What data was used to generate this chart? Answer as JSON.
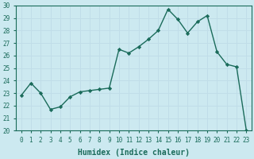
{
  "x": [
    0,
    1,
    2,
    3,
    4,
    5,
    6,
    7,
    8,
    9,
    10,
    11,
    12,
    13,
    14,
    15,
    16,
    17,
    18,
    19,
    20,
    21,
    22,
    23
  ],
  "y": [
    22.8,
    23.8,
    23.0,
    21.7,
    21.9,
    22.7,
    23.1,
    23.2,
    23.3,
    23.4,
    26.5,
    26.2,
    26.7,
    27.3,
    28.0,
    29.7,
    28.9,
    27.8,
    28.7,
    29.2,
    26.3,
    25.3,
    25.1,
    20.0
  ],
  "line_color": "#1a6b5a",
  "marker": "D",
  "markersize": 2.2,
  "linewidth": 1.0,
  "bg_color": "#cce9f0",
  "grid_color": "#c0dde8",
  "xlabel": "Humidex (Indice chaleur)",
  "ylim": [
    20,
    30
  ],
  "xlim": [
    -0.5,
    23.5
  ],
  "yticks": [
    20,
    21,
    22,
    23,
    24,
    25,
    26,
    27,
    28,
    29,
    30
  ],
  "xticks": [
    0,
    1,
    2,
    3,
    4,
    5,
    6,
    7,
    8,
    9,
    10,
    11,
    12,
    13,
    14,
    15,
    16,
    17,
    18,
    19,
    20,
    21,
    22,
    23
  ],
  "tick_fontsize": 5.5,
  "xlabel_fontsize": 7.0,
  "spine_color": "#1a6b5a"
}
